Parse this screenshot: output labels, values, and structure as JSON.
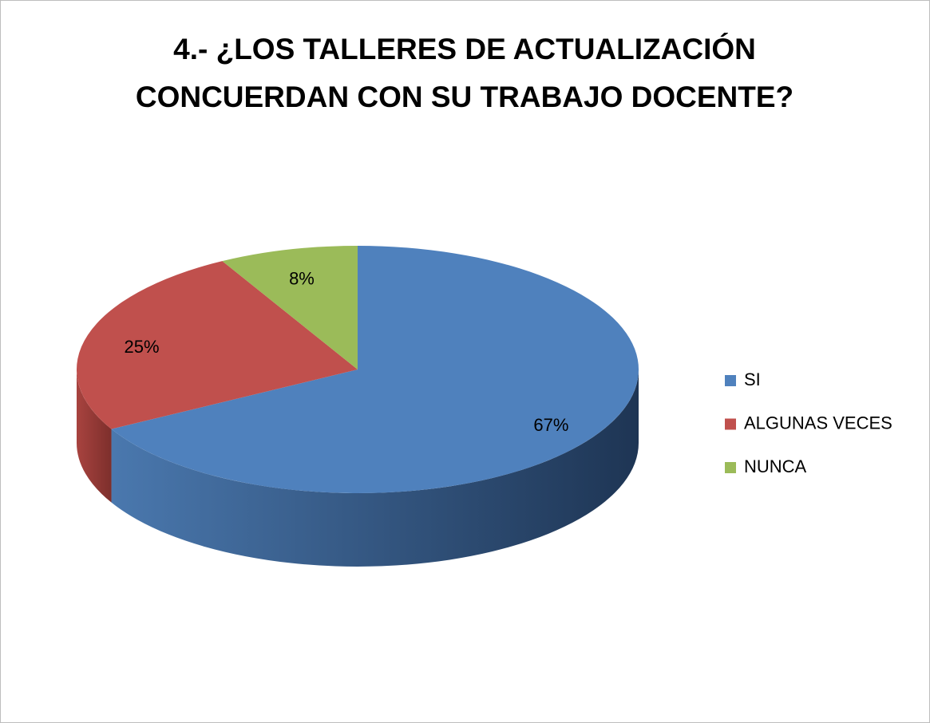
{
  "chart_data": {
    "type": "pie",
    "title": "4.- ¿LOS TALLERES DE ACTUALIZACIÓN CONCUERDAN CON SU TRABAJO DOCENTE?",
    "categories": [
      "SI",
      "ALGUNAS VECES",
      "NUNCA"
    ],
    "values": [
      67,
      25,
      8
    ],
    "value_labels": [
      "67%",
      "25%",
      "8%"
    ],
    "colors": [
      "#4f81bd",
      "#c0504d",
      "#9bbb59"
    ],
    "legend": "right"
  }
}
